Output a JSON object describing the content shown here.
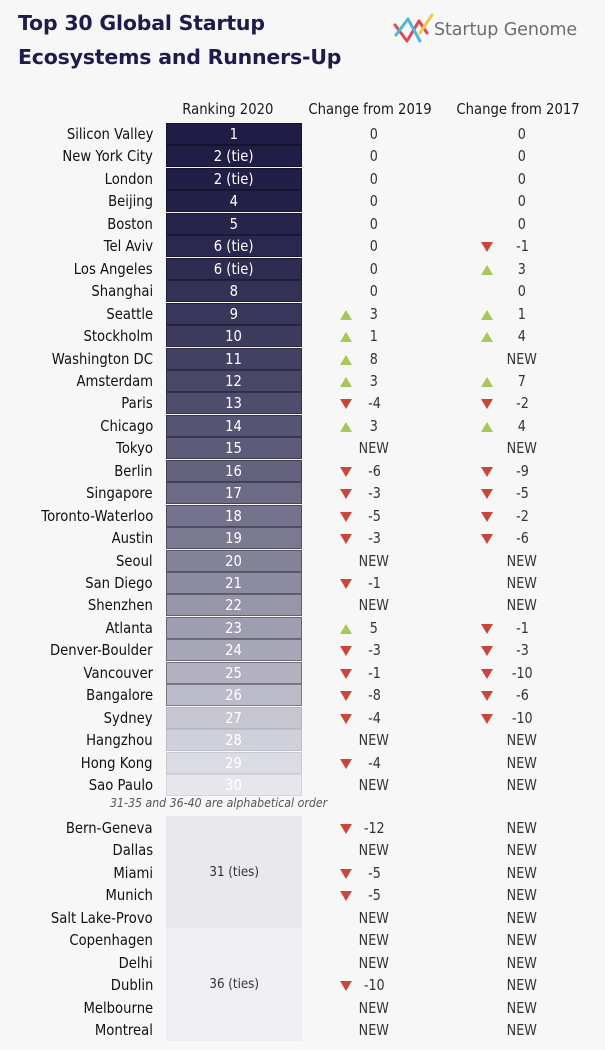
{
  "title_lines": [
    "Top 30 Global Startup",
    "Ecosystems and Runners-Up"
  ],
  "logo": {
    "text": "Startup Genome",
    "icon": "startup-genome-zigzag-logo",
    "colors": [
      "#d94a52",
      "#4fb8d8",
      "#f2c94c"
    ]
  },
  "colors": {
    "bar_start": "#1f1c45",
    "bar_end": "#e6e6ec",
    "up": "#a6c75a",
    "down": "#c9463d",
    "tie_group_1": "#e8e8ed",
    "tie_group_2": "#efeff3"
  },
  "chart_data": {
    "type": "table",
    "title": "Top 30 Global Startup Ecosystems and Runners-Up",
    "columns": [
      "Ranking 2020",
      "Change from 2019",
      "Change from 2017"
    ],
    "rows": [
      {
        "name": "Silicon Valley",
        "rank": "1",
        "c2019": "0",
        "c2017": "0"
      },
      {
        "name": "New York City",
        "rank": "2 (tie)",
        "c2019": "0",
        "c2017": "0"
      },
      {
        "name": "London",
        "rank": "2 (tie)",
        "c2019": "0",
        "c2017": "0"
      },
      {
        "name": "Beijing",
        "rank": "4",
        "c2019": "0",
        "c2017": "0"
      },
      {
        "name": "Boston",
        "rank": "5",
        "c2019": "0",
        "c2017": "0"
      },
      {
        "name": "Tel Aviv",
        "rank": "6 (tie)",
        "c2019": "0",
        "c2017": "-1"
      },
      {
        "name": "Los Angeles",
        "rank": "6 (tie)",
        "c2019": "0",
        "c2017": "3"
      },
      {
        "name": "Shanghai",
        "rank": "8",
        "c2019": "0",
        "c2017": "0"
      },
      {
        "name": "Seattle",
        "rank": "9",
        "c2019": "3",
        "c2017": "1"
      },
      {
        "name": "Stockholm",
        "rank": "10",
        "c2019": "1",
        "c2017": "4"
      },
      {
        "name": "Washington DC",
        "rank": "11",
        "c2019": "8",
        "c2017": "NEW"
      },
      {
        "name": "Amsterdam",
        "rank": "12",
        "c2019": "3",
        "c2017": "7"
      },
      {
        "name": "Paris",
        "rank": "13",
        "c2019": "-4",
        "c2017": "-2"
      },
      {
        "name": "Chicago",
        "rank": "14",
        "c2019": "3",
        "c2017": "4"
      },
      {
        "name": "Tokyo",
        "rank": "15",
        "c2019": "NEW",
        "c2017": "NEW"
      },
      {
        "name": "Berlin",
        "rank": "16",
        "c2019": "-6",
        "c2017": "-9"
      },
      {
        "name": "Singapore",
        "rank": "17",
        "c2019": "-3",
        "c2017": "-5"
      },
      {
        "name": "Toronto-Waterloo",
        "rank": "18",
        "c2019": "-5",
        "c2017": "-2"
      },
      {
        "name": "Austin",
        "rank": "19",
        "c2019": "-3",
        "c2017": "-6"
      },
      {
        "name": "Seoul",
        "rank": "20",
        "c2019": "NEW",
        "c2017": "NEW"
      },
      {
        "name": "San Diego",
        "rank": "21",
        "c2019": "-1",
        "c2017": "NEW"
      },
      {
        "name": "Shenzhen",
        "rank": "22",
        "c2019": "NEW",
        "c2017": "NEW"
      },
      {
        "name": "Atlanta",
        "rank": "23",
        "c2019": "5",
        "c2017": "-1"
      },
      {
        "name": "Denver-Boulder",
        "rank": "24",
        "c2019": "-3",
        "c2017": "-3"
      },
      {
        "name": "Vancouver",
        "rank": "25",
        "c2019": "-1",
        "c2017": "-10"
      },
      {
        "name": "Bangalore",
        "rank": "26",
        "c2019": "-8",
        "c2017": "-6"
      },
      {
        "name": "Sydney",
        "rank": "27",
        "c2019": "-4",
        "c2017": "-10"
      },
      {
        "name": "Hangzhou",
        "rank": "28",
        "c2019": "NEW",
        "c2017": "NEW"
      },
      {
        "name": "Hong Kong",
        "rank": "29",
        "c2019": "-4",
        "c2017": "NEW"
      },
      {
        "name": "Sao Paulo",
        "rank": "30",
        "c2019": "NEW",
        "c2017": "NEW"
      }
    ],
    "footnote": "31-35 and 36-40 are alphabetical order",
    "runners_up": [
      {
        "rank_label": "31 (ties)",
        "rows": [
          {
            "name": "Bern-Geneva",
            "c2019": "-12",
            "c2017": "NEW"
          },
          {
            "name": "Dallas",
            "c2019": "NEW",
            "c2017": "NEW"
          },
          {
            "name": "Miami",
            "c2019": "-5",
            "c2017": "NEW"
          },
          {
            "name": "Munich",
            "c2019": "-5",
            "c2017": "NEW"
          },
          {
            "name": "Salt Lake-Provo",
            "c2019": "NEW",
            "c2017": "NEW"
          }
        ]
      },
      {
        "rank_label": "36 (ties)",
        "rows": [
          {
            "name": "Copenhagen",
            "c2019": "NEW",
            "c2017": "NEW"
          },
          {
            "name": "Delhi",
            "c2019": "NEW",
            "c2017": "NEW"
          },
          {
            "name": "Dublin",
            "c2019": "-10",
            "c2017": "NEW"
          },
          {
            "name": "Melbourne",
            "c2019": "NEW",
            "c2017": "NEW"
          },
          {
            "name": "Montreal",
            "c2019": "NEW",
            "c2017": "NEW"
          }
        ]
      }
    ]
  }
}
